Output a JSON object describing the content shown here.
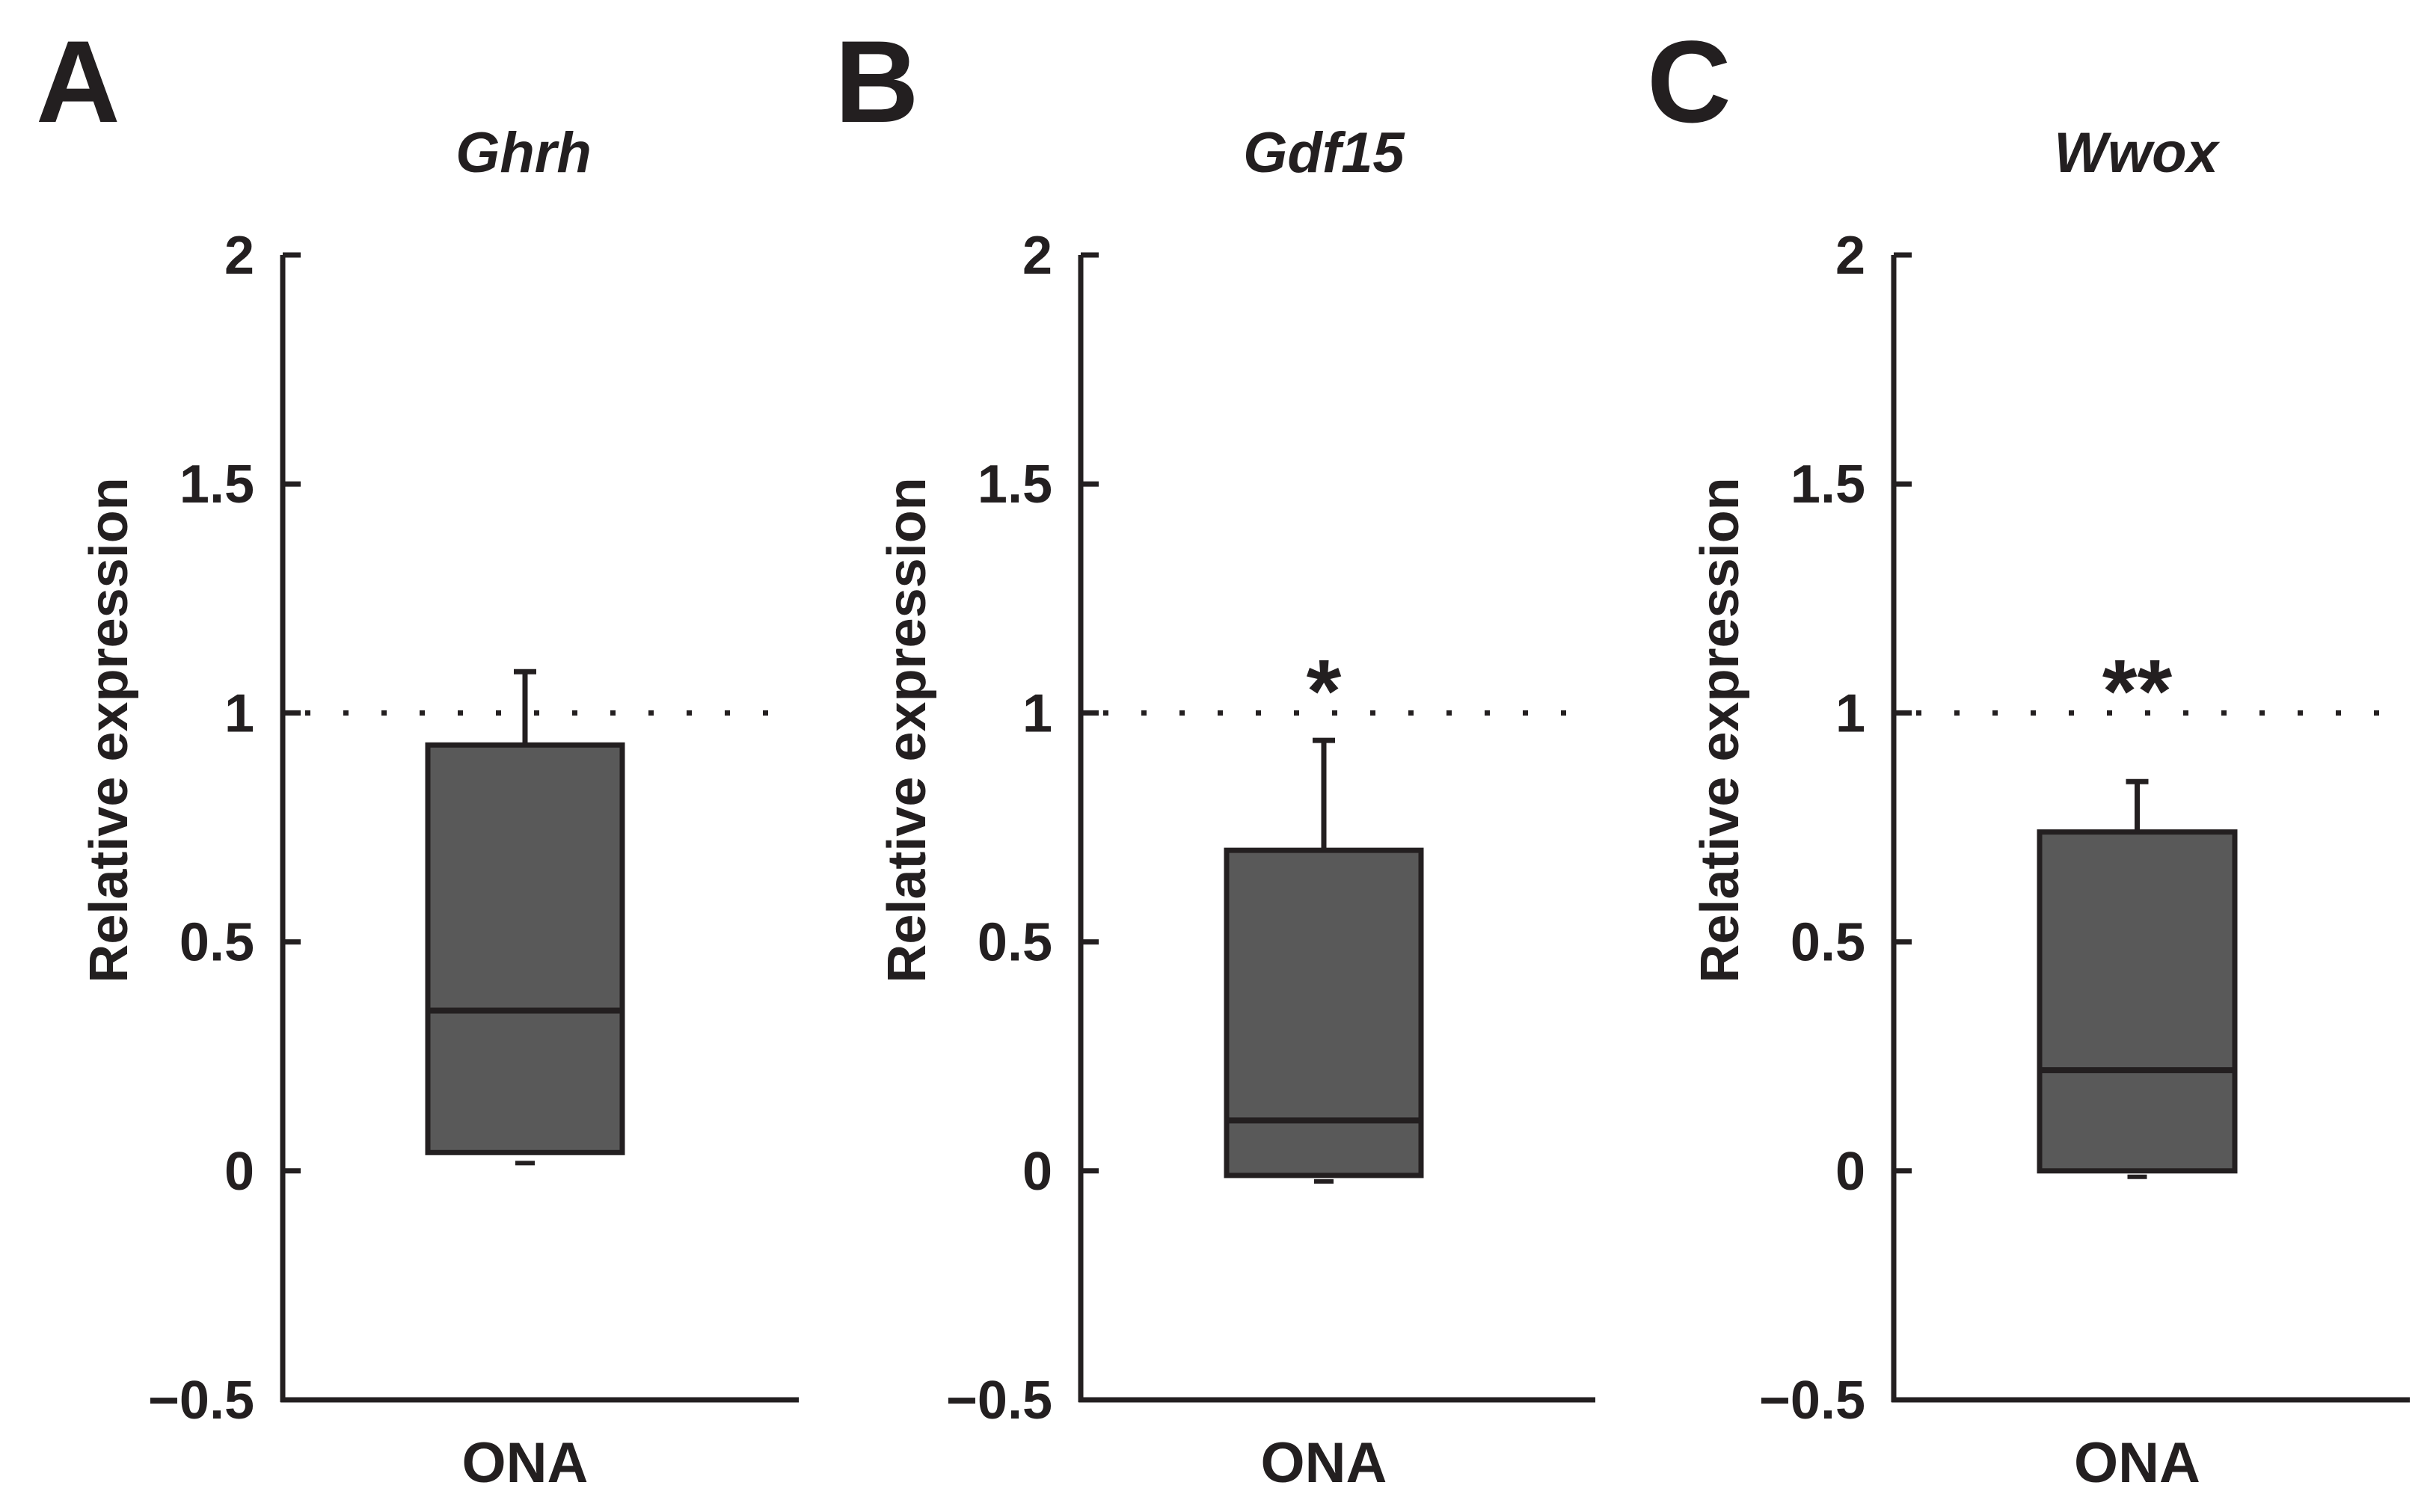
{
  "figure": {
    "background": "#ffffff",
    "ink_color": "#231f20",
    "box_fill": "#595959"
  },
  "chart_data": [
    {
      "type": "box",
      "panel_label": "A",
      "title": "Ghrh",
      "ylabel": "Relative expression",
      "xlabel": "",
      "categories": [
        "ONA"
      ],
      "ylim": [
        -0.5,
        2
      ],
      "yticks": [
        -0.5,
        0,
        0.5,
        1,
        1.5,
        2
      ],
      "ytick_labels": [
        "−0.5",
        "0",
        "0.5",
        "1",
        "1.5",
        "2"
      ],
      "reference_line": 1,
      "box": {
        "whisker_low": 0.03,
        "q1": 0.04,
        "median": 0.35,
        "q3": 0.93,
        "whisker_high": 1.09
      },
      "significance": ""
    },
    {
      "type": "box",
      "panel_label": "B",
      "title": "Gdf15",
      "ylabel": "Relative expression",
      "xlabel": "",
      "categories": [
        "ONA"
      ],
      "ylim": [
        -0.5,
        2
      ],
      "yticks": [
        -0.5,
        0,
        0.5,
        1,
        1.5,
        2
      ],
      "ytick_labels": [
        "−0.5",
        "0",
        "0.5",
        "1",
        "1.5",
        "2"
      ],
      "reference_line": 1,
      "box": {
        "whisker_low": -0.01,
        "q1": -0.01,
        "median": 0.11,
        "q3": 0.7,
        "whisker_high": 0.94
      },
      "significance": "*"
    },
    {
      "type": "box",
      "panel_label": "C",
      "title": "Wwox",
      "ylabel": "Relative expression",
      "xlabel": "",
      "categories": [
        "ONA"
      ],
      "ylim": [
        -0.5,
        2
      ],
      "yticks": [
        -0.5,
        0,
        0.5,
        1,
        1.5,
        2
      ],
      "ytick_labels": [
        "−0.5",
        "0",
        "0.5",
        "1",
        "1.5",
        "2"
      ],
      "reference_line": 1,
      "box": {
        "whisker_low": 0.0,
        "q1": 0.0,
        "median": 0.22,
        "q3": 0.74,
        "whisker_high": 0.85
      },
      "significance": "**"
    }
  ]
}
